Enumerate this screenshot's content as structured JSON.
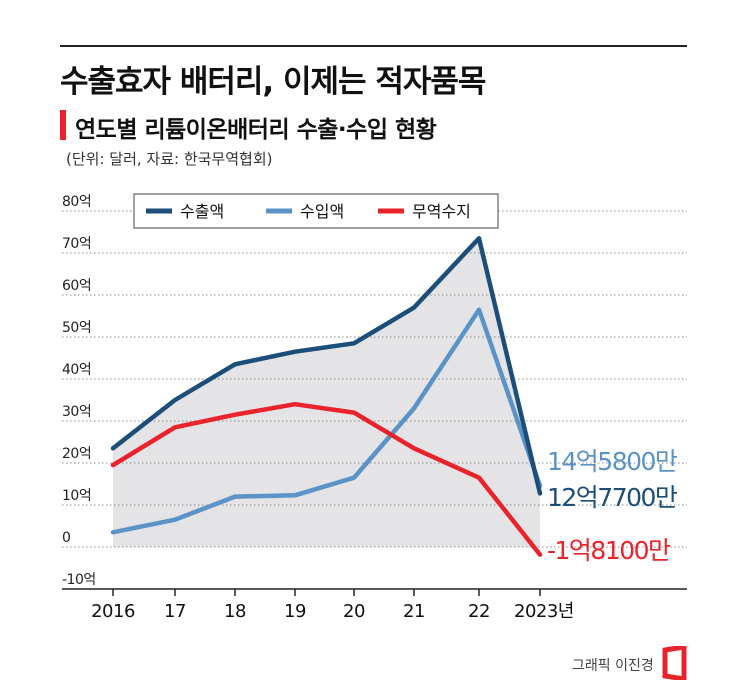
{
  "headline": "수출효자 배터리, 이제는 적자품목",
  "subtitle": "연도별 리튬이온배터리 수출·수입 현황",
  "unit_note": "(단위: 달러, 자료: 한국무역협회)",
  "credit": "그래픽 이진경",
  "chart_data": {
    "type": "line",
    "categories": [
      "2016",
      "17",
      "18",
      "19",
      "20",
      "21",
      "22",
      "2023년"
    ],
    "ylim": [
      -10,
      80
    ],
    "y_ticks": [
      "80억",
      "70억",
      "60억",
      "50억",
      "40억",
      "30억",
      "20억",
      "10억",
      "0",
      "-10억"
    ],
    "y_tick_values": [
      80,
      70,
      60,
      50,
      40,
      30,
      20,
      10,
      0,
      -10
    ],
    "grid": "dotted horizontal",
    "legend_position": "top",
    "series": [
      {
        "name": "수출액",
        "color": "#1c4e7a",
        "values": [
          23.5,
          35,
          43.5,
          46.5,
          48.5,
          57,
          73.5,
          12.77
        ]
      },
      {
        "name": "수입액",
        "color": "#5b93c7",
        "values": [
          3.5,
          6.5,
          12,
          12.3,
          16.5,
          33,
          56.5,
          14.58
        ]
      },
      {
        "name": "무역수지",
        "color": "#e8232b",
        "values": [
          19.5,
          28.5,
          31.5,
          34,
          32,
          23.5,
          16.5,
          -1.81
        ]
      }
    ],
    "end_labels": [
      {
        "series": "수입액",
        "text": "14억5800만",
        "color": "#5b93c7"
      },
      {
        "series": "수출액",
        "text": "12억7700만",
        "color": "#1c4e7a"
      },
      {
        "series": "무역수지",
        "text": "-1억8100만",
        "color": "#e8232b"
      }
    ]
  }
}
